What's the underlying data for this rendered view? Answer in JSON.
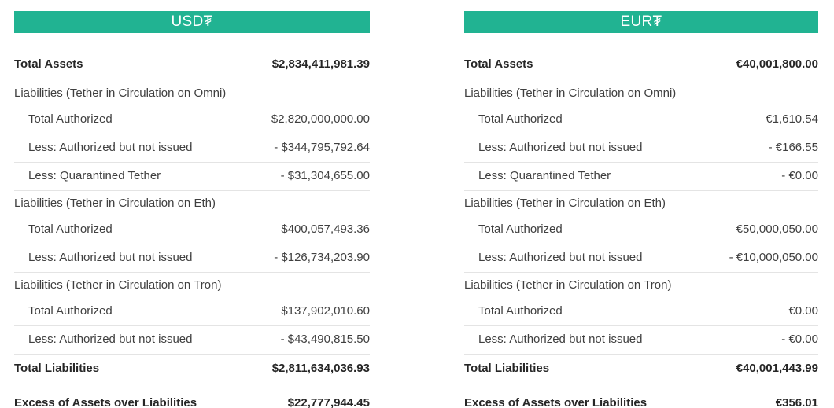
{
  "colors": {
    "accent_teal": "#21b392",
    "row_border": "#e4e4e4",
    "label_text": "#3f3f3f",
    "bold_text": "#262626",
    "header_text": "#ffffff"
  },
  "tables": [
    {
      "header": "USD₮",
      "rows": [
        {
          "type": "total",
          "label": "Total Assets",
          "value": "$2,834,411,981.39"
        },
        {
          "type": "section",
          "label": "Liabilities (Tether in Circulation on Omni)"
        },
        {
          "type": "item",
          "label": "Total Authorized",
          "value": "$2,820,000,000.00"
        },
        {
          "type": "item",
          "label": "Less: Authorized but not issued",
          "value": "- $344,795,792.64"
        },
        {
          "type": "item",
          "label": "Less: Quarantined Tether",
          "value": "- $31,304,655.00"
        },
        {
          "type": "section",
          "label": "Liabilities (Tether in Circulation on Eth)"
        },
        {
          "type": "item",
          "label": "Total Authorized",
          "value": "$400,057,493.36"
        },
        {
          "type": "item",
          "label": "Less: Authorized but not issued",
          "value": "- $126,734,203.90"
        },
        {
          "type": "section",
          "label": "Liabilities (Tether in Circulation on Tron)"
        },
        {
          "type": "item",
          "label": "Total Authorized",
          "value": "$137,902,010.60"
        },
        {
          "type": "item",
          "label": "Less: Authorized but not issued",
          "value": "- $43,490,815.50"
        },
        {
          "type": "total",
          "label": "Total Liabilities",
          "value": "$2,811,634,036.93"
        },
        {
          "type": "total",
          "label": "Excess of Assets over Liabilities",
          "value": "$22,777,944.45"
        }
      ]
    },
    {
      "header": "EUR₮",
      "rows": [
        {
          "type": "total",
          "label": "Total Assets",
          "value": "€40,001,800.00"
        },
        {
          "type": "section",
          "label": "Liabilities (Tether in Circulation on Omni)"
        },
        {
          "type": "item",
          "label": "Total Authorized",
          "value": "€1,610.54"
        },
        {
          "type": "item",
          "label": "Less: Authorized but not issued",
          "value": "- €166.55"
        },
        {
          "type": "item",
          "label": "Less: Quarantined Tether",
          "value": "- €0.00"
        },
        {
          "type": "section",
          "label": "Liabilities (Tether in Circulation on Eth)"
        },
        {
          "type": "item",
          "label": "Total Authorized",
          "value": "€50,000,050.00"
        },
        {
          "type": "item",
          "label": "Less: Authorized but not issued",
          "value": "- €10,000,050.00"
        },
        {
          "type": "section",
          "label": "Liabilities (Tether in Circulation on Tron)"
        },
        {
          "type": "item",
          "label": "Total Authorized",
          "value": "€0.00"
        },
        {
          "type": "item",
          "label": "Less: Authorized but not issued",
          "value": "- €0.00"
        },
        {
          "type": "total",
          "label": "Total Liabilities",
          "value": "€40,001,443.99"
        },
        {
          "type": "total",
          "label": "Excess of Assets over Liabilities",
          "value": "€356.01"
        }
      ]
    }
  ]
}
